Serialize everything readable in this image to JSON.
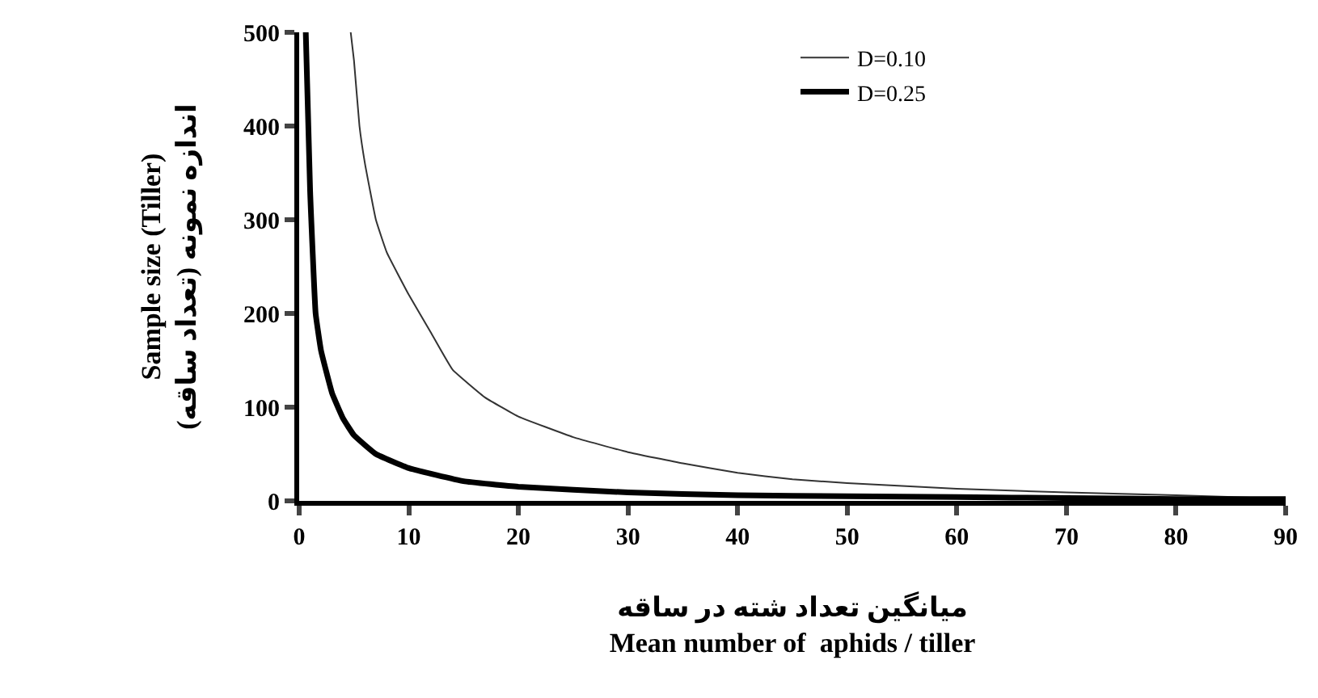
{
  "chart_data": {
    "type": "line",
    "xlabel": "میانگین تعداد شته در ساقه\nMean number of  aphids / tiller",
    "ylabel": "Sample size (Tiller)\nاندازه نمونه (تعداد ساقه)",
    "series": [
      {
        "name": "D=0.10",
        "color": "#333333",
        "x": [
          4.7,
          5,
          5.5,
          6,
          7,
          8,
          10,
          12,
          14,
          17,
          20,
          25,
          30,
          35,
          40,
          45,
          50,
          60,
          70,
          80,
          88
        ],
        "values": [
          500,
          470,
          400,
          360,
          300,
          265,
          220,
          180,
          140,
          110,
          90,
          68,
          52,
          40,
          30,
          23,
          19,
          13,
          9,
          6,
          3
        ]
      },
      {
        "name": "D=0.25",
        "color": "#000000",
        "x": [
          0.6,
          1,
          1.5,
          2,
          3,
          4,
          5,
          7,
          10,
          15,
          20,
          30,
          40,
          50,
          60,
          70,
          80,
          90
        ],
        "values": [
          500,
          330,
          200,
          160,
          115,
          88,
          70,
          50,
          35,
          21,
          15,
          9,
          6,
          5,
          4,
          3,
          2,
          2
        ]
      }
    ],
    "xlim": [
      0,
      90
    ],
    "xticks": [
      0,
      10,
      20,
      30,
      40,
      50,
      60,
      70,
      80,
      90
    ],
    "ylim": [
      0,
      500
    ],
    "yticks": [
      0,
      100,
      200,
      300,
      400,
      500
    ],
    "legend": "top right",
    "marker": "none",
    "line_style": "solid"
  }
}
